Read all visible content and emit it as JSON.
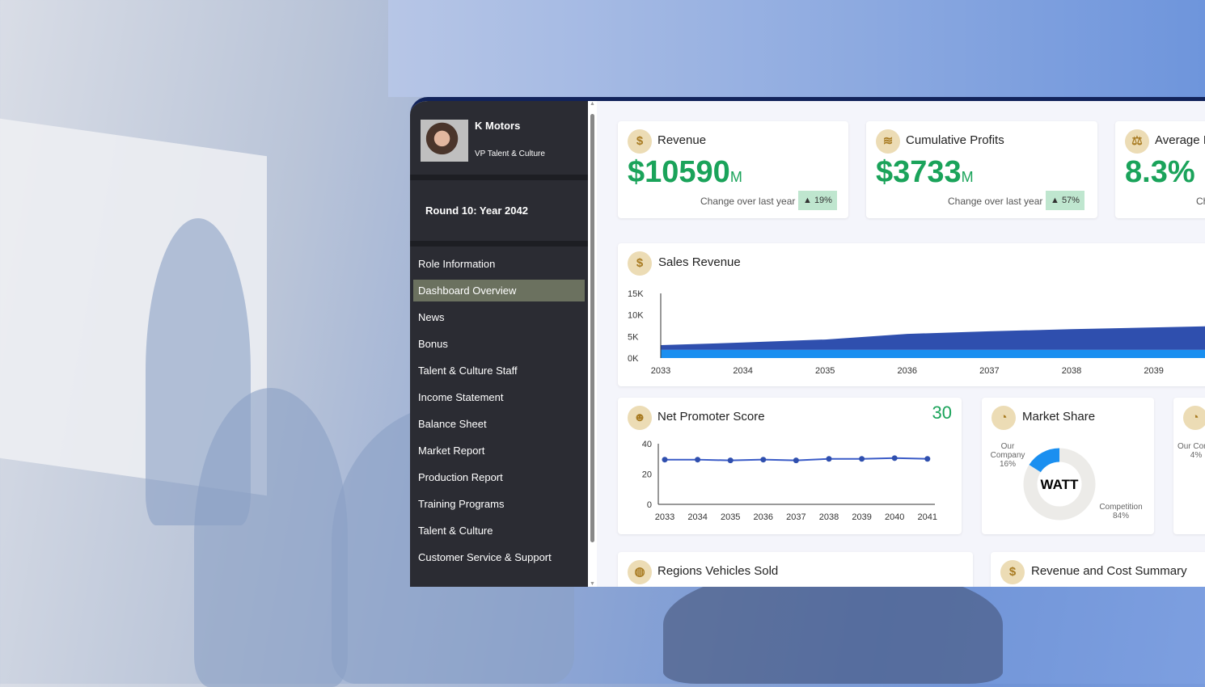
{
  "profile": {
    "company": "K  Motors",
    "role": "VP Talent & Culture"
  },
  "round": "Round 10: Year 2042",
  "nav": [
    "Role Information",
    "Dashboard Overview",
    "News",
    "Bonus",
    "Talent & Culture Staff",
    "Income Statement",
    "Balance Sheet",
    "Market Report",
    "Production Report",
    "Training Programs",
    "Talent & Culture",
    "Customer Service & Support"
  ],
  "nav_active": "Dashboard Overview",
  "kpis": [
    {
      "title": "Revenue",
      "value": "$10590",
      "unit": "M",
      "change_label": "Change over last year",
      "change": "▲ 19%",
      "icon": "money-bag-icon"
    },
    {
      "title": "Cumulative Profits",
      "value": "$3733",
      "unit": "M",
      "change_label": "Change over last year",
      "change": "▲ 57%",
      "icon": "coins-icon"
    },
    {
      "title": "Average I",
      "value": "8.3%",
      "change_label": "Ch",
      "icon": "scale-icon"
    }
  ],
  "sales": {
    "title": "Sales Revenue"
  },
  "nps": {
    "title": "Net Promoter Score",
    "current": "30"
  },
  "market_share": {
    "title": "Market Share",
    "center": "WATT",
    "our_label": "Our Company",
    "our_pct": "16%",
    "comp_label": "Competition",
    "comp_pct": "84%"
  },
  "market_share2": {
    "our_label": "Our Comp",
    "our_pct": "4%"
  },
  "bottom": {
    "regions": "Regions Vehicles Sold",
    "summary": "Revenue and Cost Summary"
  },
  "colors": {
    "positive": "#1aa35a",
    "dark_series": "#2f4fae",
    "light_series": "#1a8ff0",
    "sidebar": "#2b2c33"
  },
  "chart_data": [
    {
      "type": "area",
      "title": "Sales Revenue",
      "categories": [
        "2033",
        "2034",
        "2035",
        "2036",
        "2037",
        "2038",
        "2039"
      ],
      "yticks": [
        "0K",
        "5K",
        "10K",
        "15K"
      ],
      "ylim": [
        0,
        15000
      ],
      "series": [
        {
          "values": [
            1900,
            1900,
            1900,
            1900,
            1900,
            1900,
            1900
          ]
        },
        {
          "values": [
            1100,
            1700,
            2400,
            3700,
            4300,
            4800,
            5200
          ]
        }
      ]
    },
    {
      "type": "line",
      "title": "Net Promoter Score",
      "categories": [
        "2033",
        "2034",
        "2035",
        "2036",
        "2037",
        "2038",
        "2039",
        "2040",
        "2041"
      ],
      "values": [
        29.5,
        29.5,
        29,
        29.5,
        29,
        30,
        30,
        30.5,
        30
      ],
      "yticks": [
        "0",
        "20",
        "40"
      ],
      "ylim": [
        0,
        40
      ]
    },
    {
      "type": "pie",
      "title": "Market Share",
      "categories": [
        "Our Company",
        "Competition"
      ],
      "values": [
        16,
        84
      ]
    }
  ]
}
